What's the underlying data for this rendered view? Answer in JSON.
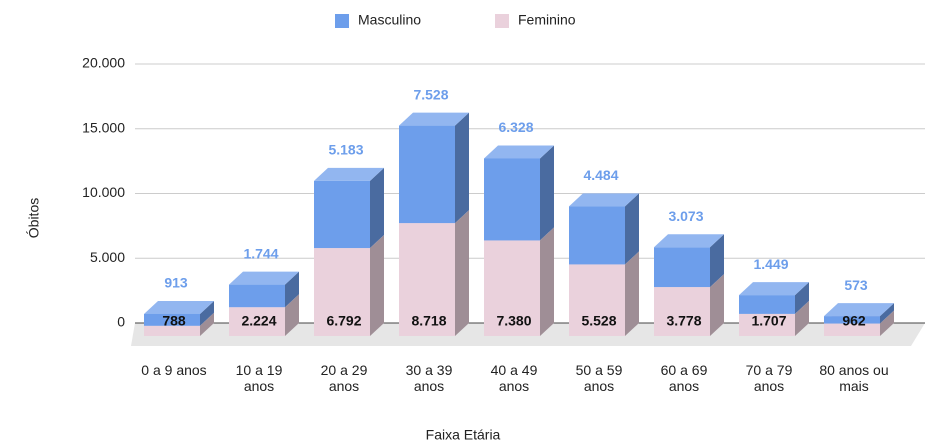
{
  "chart_data": {
    "type": "bar3d_stacked",
    "x_label": "Faixa Etária",
    "y_label": "Óbitos",
    "categories": [
      "0 a 9 anos",
      "10 a 19 anos",
      "20 a 29 anos",
      "30 a 39 anos",
      "40 a 49 anos",
      "50 a 59 anos",
      "60 a 69 anos",
      "70 a 79 anos",
      "80 anos ou mais"
    ],
    "series": [
      {
        "name": "Feminino",
        "color": "#ead1dc",
        "values": [
          788,
          2224,
          6792,
          8718,
          7380,
          5528,
          3778,
          1707,
          962
        ],
        "value_labels": [
          "788",
          "2.224",
          "6.792",
          "8.718",
          "7.380",
          "5.528",
          "3.778",
          "1.707",
          "962"
        ]
      },
      {
        "name": "Masculino",
        "color": "#6d9eeb",
        "values": [
          913,
          1744,
          5183,
          7528,
          6328,
          4484,
          3073,
          1449,
          573
        ],
        "value_labels": [
          "913",
          "1.744",
          "5.183",
          "7.528",
          "6.328",
          "4.484",
          "3.073",
          "1.449",
          "573"
        ]
      }
    ],
    "legend_order": [
      "Masculino",
      "Feminino"
    ],
    "legend": "top",
    "ylim": [
      0,
      20000
    ],
    "yticks": [
      0,
      {
        "value": 5000,
        "label": "5.000"
      },
      {
        "value": 10000,
        "label": "10.000"
      },
      {
        "value": 15000,
        "label": "15.000"
      },
      {
        "value": 20000,
        "label": "20.000"
      }
    ],
    "grid": true
  }
}
